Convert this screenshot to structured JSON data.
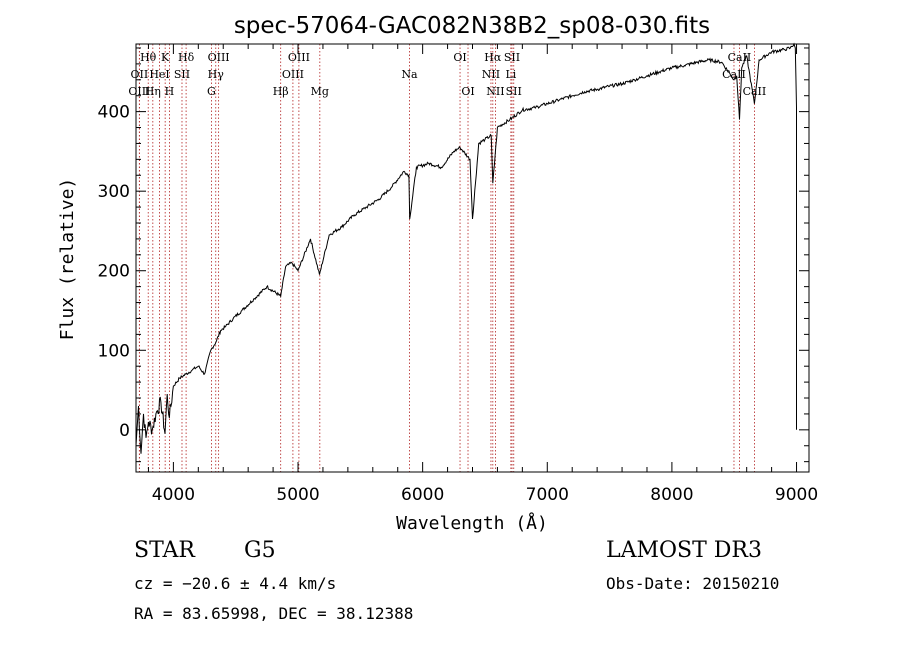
{
  "chart_data": {
    "type": "line",
    "title": "spec-57064-GAC082N38B2_sp08-030.fits",
    "xlabel": "Wavelength (Å)",
    "ylabel": "Flux (relative)",
    "xlim": [
      3700,
      9100
    ],
    "ylim": [
      -53,
      485
    ],
    "x_ticks": [
      4000,
      5000,
      6000,
      7000,
      8000,
      9000
    ],
    "y_ticks": [
      0,
      100,
      200,
      300,
      400
    ],
    "series": [
      {
        "name": "flux",
        "x": [
          3700,
          3720,
          3740,
          3760,
          3780,
          3800,
          3830,
          3860,
          3900,
          3933,
          3950,
          3968,
          4000,
          4050,
          4100,
          4150,
          4200,
          4250,
          4300,
          4340,
          4380,
          4420,
          4480,
          4550,
          4650,
          4750,
          4861,
          4900,
          4950,
          5000,
          5100,
          5172,
          5250,
          5350,
          5450,
          5550,
          5650,
          5750,
          5850,
          5890,
          5896,
          5950,
          6050,
          6150,
          6250,
          6300,
          6380,
          6400,
          6450,
          6500,
          6550,
          6563,
          6600,
          6700,
          6800,
          6900,
          7000,
          7100,
          7200,
          7300,
          7400,
          7500,
          7600,
          7700,
          7800,
          7900,
          8000,
          8100,
          8200,
          8300,
          8400,
          8498,
          8520,
          8542,
          8560,
          8600,
          8662,
          8700,
          8800,
          8900,
          8950,
          8980,
          8990,
          9000
        ],
        "y": [
          -20,
          30,
          -30,
          20,
          -10,
          10,
          0,
          20,
          35,
          -5,
          45,
          15,
          55,
          65,
          70,
          75,
          80,
          70,
          100,
          110,
          125,
          130,
          140,
          150,
          165,
          180,
          168,
          205,
          210,
          200,
          240,
          195,
          245,
          255,
          270,
          280,
          290,
          305,
          325,
          320,
          265,
          330,
          335,
          330,
          350,
          355,
          340,
          265,
          360,
          365,
          370,
          310,
          380,
          390,
          402,
          405,
          410,
          415,
          420,
          425,
          428,
          432,
          435,
          440,
          445,
          450,
          455,
          458,
          462,
          465,
          462,
          440,
          445,
          390,
          455,
          470,
          410,
          465,
          475,
          478,
          480,
          485,
          480,
          405
        ]
      }
    ],
    "lines": [
      {
        "label": "Hθ",
        "wavelength": 3798,
        "row": 1
      },
      {
        "label": "OII",
        "wavelength": 3727,
        "row": 2
      },
      {
        "label": "OIII",
        "wavelength": 3727,
        "row": 3
      },
      {
        "label": "K",
        "wavelength": 3934,
        "row": 1
      },
      {
        "label": "HeI",
        "wavelength": 3889,
        "row": 2
      },
      {
        "label": "Hη",
        "wavelength": 3835,
        "row": 3
      },
      {
        "label": "SII",
        "wavelength": 4069,
        "row": 2
      },
      {
        "label": "H",
        "wavelength": 3968,
        "row": 3
      },
      {
        "label": "Hδ",
        "wavelength": 4102,
        "row": 1
      },
      {
        "label": "OIII",
        "wavelength": 4363,
        "row": 1
      },
      {
        "label": "Hγ",
        "wavelength": 4340,
        "row": 2
      },
      {
        "label": "G",
        "wavelength": 4305,
        "row": 3
      },
      {
        "label": "OIII",
        "wavelength": 5007,
        "row": 1
      },
      {
        "label": "OIII",
        "wavelength": 4959,
        "row": 2
      },
      {
        "label": "Hβ",
        "wavelength": 4861,
        "row": 3
      },
      {
        "label": "Mg",
        "wavelength": 5175,
        "row": 3
      },
      {
        "label": "Na",
        "wavelength": 5894,
        "row": 2
      },
      {
        "label": "OI",
        "wavelength": 6300,
        "row": 1
      },
      {
        "label": "OI",
        "wavelength": 6364,
        "row": 3
      },
      {
        "label": "Hα",
        "wavelength": 6563,
        "row": 1
      },
      {
        "label": "SII",
        "wavelength": 6717,
        "row": 1
      },
      {
        "label": "NII",
        "wavelength": 6548,
        "row": 2
      },
      {
        "label": "Li",
        "wavelength": 6708,
        "row": 2
      },
      {
        "label": "NII",
        "wavelength": 6584,
        "row": 3
      },
      {
        "label": "SII",
        "wavelength": 6731,
        "row": 3
      },
      {
        "label": "CaII",
        "wavelength": 8542,
        "row": 1
      },
      {
        "label": "CaII",
        "wavelength": 8498,
        "row": 2
      },
      {
        "label": "CaII",
        "wavelength": 8662,
        "row": 3
      }
    ],
    "colors": {
      "spectrum": "#000000",
      "line_marker": "#b22222"
    }
  },
  "info": {
    "object_class": "STAR",
    "subclass": "G5",
    "survey": "LAMOST DR3",
    "redshift": "cz = −20.6 ± 4.4 km/s",
    "obs_date": "Obs-Date: 20150210",
    "coords": "RA =  83.65998, DEC =  38.12388"
  }
}
